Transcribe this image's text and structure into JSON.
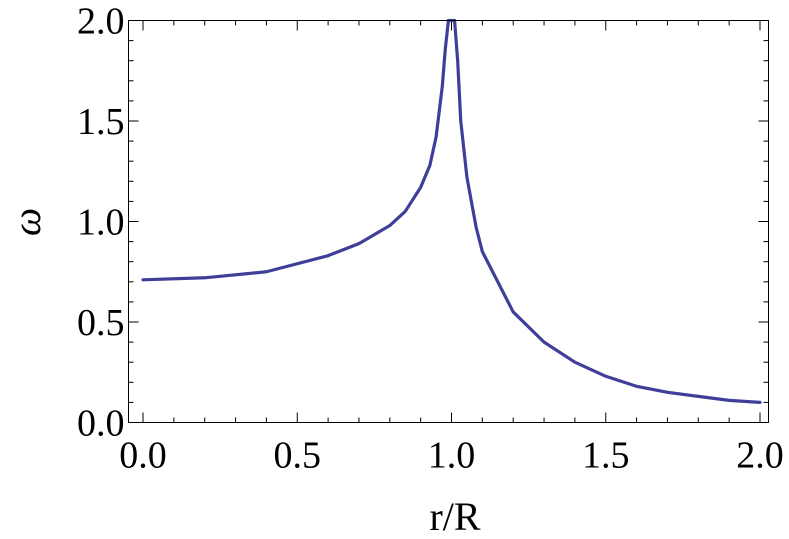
{
  "chart_data": {
    "type": "line",
    "xlabel": "r/R",
    "ylabel": "ω",
    "xlim": [
      0.0,
      2.0
    ],
    "ylim": [
      0.0,
      2.0
    ],
    "x_ticks": [
      "0.0",
      "0.5",
      "1.0",
      "1.5",
      "2.0"
    ],
    "y_ticks": [
      "0.0",
      "0.5",
      "1.0",
      "1.5",
      "2.0"
    ],
    "grid": false,
    "line_color": "#3f3f9a",
    "series": [
      {
        "x": [
          0.0,
          0.2,
          0.4,
          0.6,
          0.7,
          0.8,
          0.85,
          0.9,
          0.93,
          0.95,
          0.97,
          0.98,
          0.99,
          1.01,
          1.02,
          1.03,
          1.05,
          1.08,
          1.1,
          1.2,
          1.3,
          1.4,
          1.5,
          1.6,
          1.7,
          1.8,
          1.9,
          2.0
        ],
        "y": [
          0.71,
          0.72,
          0.75,
          0.83,
          0.89,
          0.98,
          1.05,
          1.17,
          1.28,
          1.42,
          1.67,
          1.86,
          2.0,
          2.0,
          1.8,
          1.5,
          1.22,
          0.97,
          0.85,
          0.55,
          0.4,
          0.3,
          0.23,
          0.18,
          0.15,
          0.13,
          0.11,
          0.1
        ]
      }
    ]
  }
}
